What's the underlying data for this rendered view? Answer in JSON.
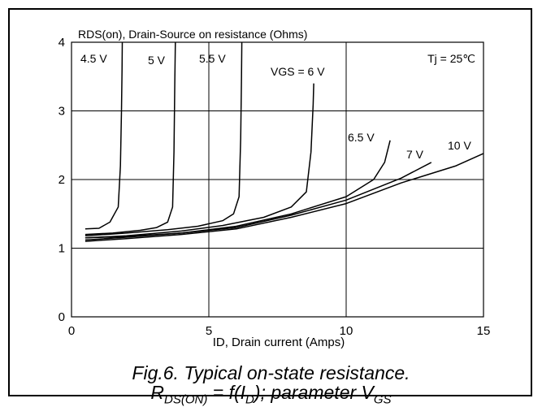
{
  "chart_data": {
    "type": "line",
    "title": "",
    "ylabel": "RDS(on), Drain-Source on resistance (Ohms)",
    "xlabel": "ID, Drain current (Amps)",
    "xlim": [
      0,
      15
    ],
    "ylim": [
      0,
      4
    ],
    "xticks": [
      0,
      5,
      10,
      15
    ],
    "yticks": [
      0,
      1,
      2,
      3,
      4
    ],
    "grid": true,
    "condition_label": "Tj = 25℃",
    "series": [
      {
        "name": "4.5 V",
        "x": [
          0.5,
          1.0,
          1.4,
          1.7,
          1.78,
          1.82,
          1.84,
          1.85
        ],
        "y": [
          1.28,
          1.29,
          1.38,
          1.6,
          2.2,
          3.0,
          3.6,
          4.0
        ]
      },
      {
        "name": "5 V",
        "x": [
          0.5,
          1.5,
          2.5,
          3.1,
          3.5,
          3.68,
          3.73,
          3.76,
          3.78
        ],
        "y": [
          1.2,
          1.22,
          1.26,
          1.3,
          1.38,
          1.6,
          2.4,
          3.4,
          4.0
        ]
      },
      {
        "name": "5.5 V",
        "x": [
          0.5,
          2.0,
          3.5,
          4.6,
          5.5,
          5.9,
          6.1,
          6.16,
          6.19,
          6.2
        ],
        "y": [
          1.18,
          1.22,
          1.27,
          1.32,
          1.4,
          1.5,
          1.75,
          2.6,
          3.5,
          4.0
        ]
      },
      {
        "name": "VGS = 6 V",
        "x": [
          0.5,
          2.0,
          4.0,
          5.5,
          7.0,
          8.0,
          8.55,
          8.72,
          8.8,
          8.82
        ],
        "y": [
          1.15,
          1.18,
          1.25,
          1.33,
          1.45,
          1.6,
          1.82,
          2.4,
          3.1,
          3.4
        ]
      },
      {
        "name": "6.5 V",
        "x": [
          0.5,
          2.0,
          4.0,
          6.0,
          8.0,
          10.0,
          11.0,
          11.4,
          11.6
        ],
        "y": [
          1.15,
          1.17,
          1.22,
          1.32,
          1.5,
          1.75,
          2.0,
          2.25,
          2.57
        ]
      },
      {
        "name": "7 V",
        "x": [
          0.5,
          2.0,
          4.0,
          6.0,
          8.0,
          10.0,
          12.0,
          13.1
        ],
        "y": [
          1.12,
          1.16,
          1.22,
          1.3,
          1.48,
          1.7,
          2.02,
          2.25
        ]
      },
      {
        "name": "10 V",
        "x": [
          0.5,
          2.0,
          4.0,
          6.0,
          8.0,
          10.0,
          12.0,
          14.0,
          15.0
        ],
        "y": [
          1.1,
          1.14,
          1.2,
          1.28,
          1.45,
          1.65,
          1.95,
          2.2,
          2.38
        ]
      }
    ]
  },
  "caption": {
    "line1": "Fig.6.  Typical on-state resistance.",
    "line2_r": "R",
    "line2_r_sub": "DS(ON)",
    "line2_mid": " = f(I",
    "line2_i_sub": "D",
    "line2_end": "); parameter V",
    "line2_v_sub": "GS"
  }
}
